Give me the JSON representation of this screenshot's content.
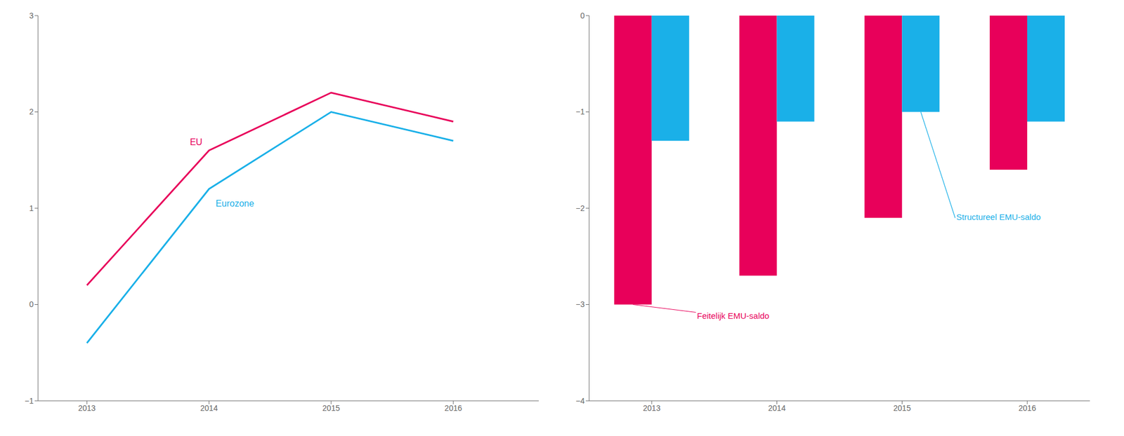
{
  "chart_data": [
    {
      "type": "line",
      "x": [
        2013,
        2014,
        2015,
        2016
      ],
      "xlim": [
        2012.6,
        2016.7
      ],
      "xticks": [
        2013,
        2014,
        2015,
        2016
      ],
      "ylim": [
        -1,
        3
      ],
      "yticks": [
        {
          "value": -1,
          "label": "−1"
        },
        0,
        1,
        2,
        3
      ],
      "grid": false,
      "series": [
        {
          "name": "EU",
          "color": "#E8005A",
          "values": [
            0.2,
            1.6,
            2.2,
            1.9
          ]
        },
        {
          "name": "Eurozone",
          "color": "#1AB0E8",
          "values": [
            -0.4,
            1.2,
            2.0,
            1.7
          ]
        }
      ]
    },
    {
      "type": "bar",
      "categories": [
        "2013",
        "2014",
        "2015",
        "2016"
      ],
      "ylim": [
        -4,
        0
      ],
      "yticks": [
        {
          "value": -4,
          "label": "−4"
        },
        {
          "value": -3,
          "label": "−3"
        },
        {
          "value": -2,
          "label": "−2"
        },
        {
          "value": -1,
          "label": "−1"
        },
        0
      ],
      "grid": false,
      "series": [
        {
          "name": "Feitelijk EMU-saldo",
          "color": "#E8005A",
          "values": [
            -3.0,
            -2.7,
            -2.1,
            -1.6
          ]
        },
        {
          "name": "Structureel EMU-saldo",
          "color": "#1AB0E8",
          "values": [
            -1.3,
            -1.1,
            -1.0,
            -1.1
          ]
        }
      ]
    }
  ]
}
